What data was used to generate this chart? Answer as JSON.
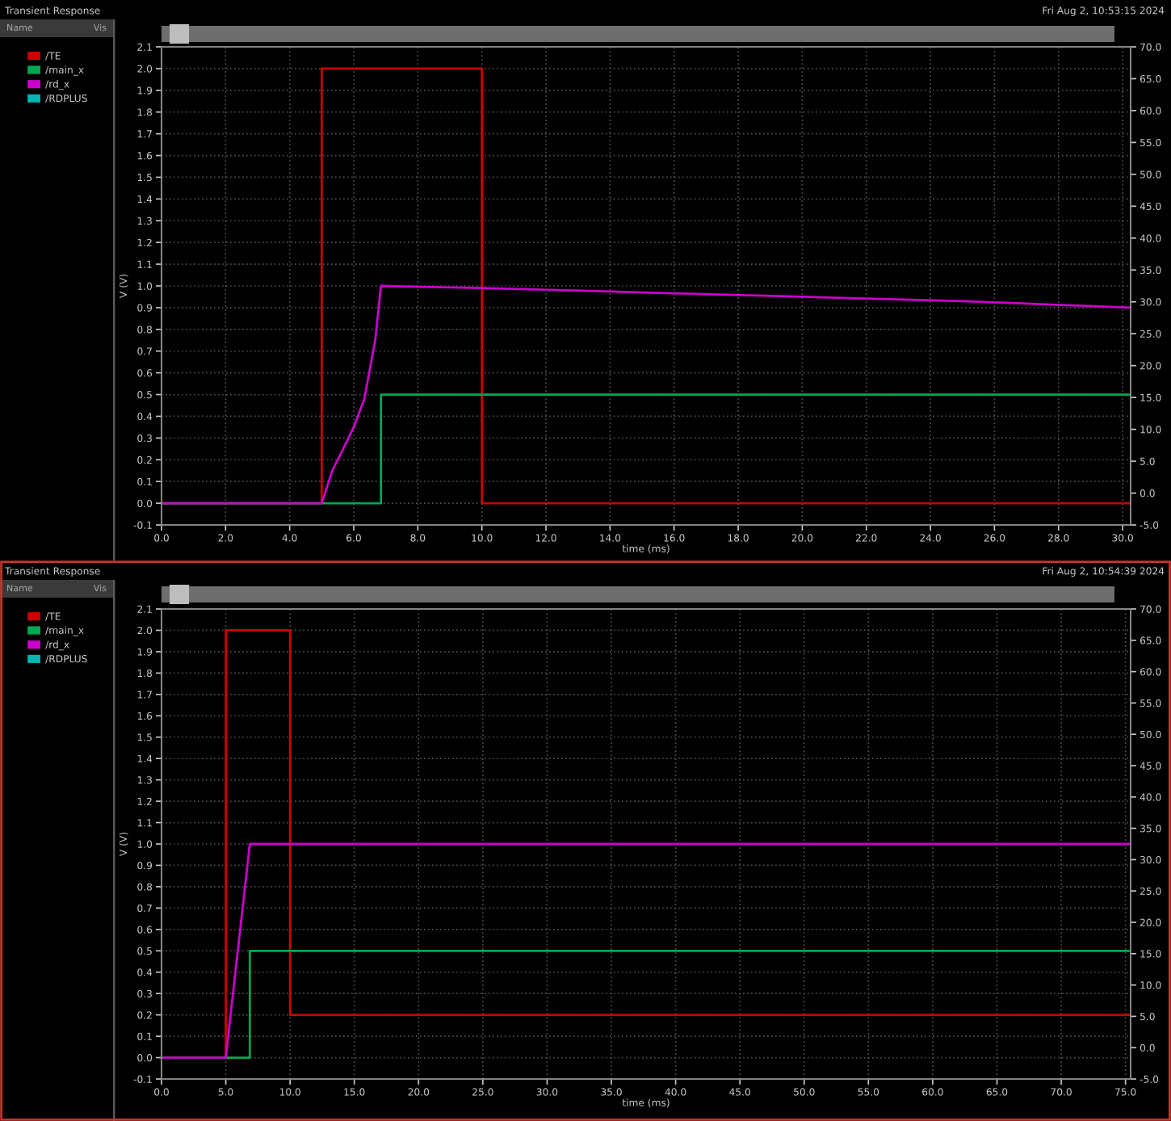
{
  "chart_data": [
    {
      "type": "line",
      "title": "Transient Response",
      "subtitle": "Fri Aug 2, 10:53:15 2024",
      "xlabel": "time (ms)",
      "ylabel": "V (V)",
      "annotations": [
        "Name",
        "Vis"
      ],
      "xlim": [
        0,
        30.25
      ],
      "xticks": [
        {
          "value": 0,
          "label": "0.0"
        },
        {
          "value": 2,
          "label": "2.0"
        },
        {
          "value": 4,
          "label": "4.0"
        },
        {
          "value": 6,
          "label": "6.0"
        },
        {
          "value": 8,
          "label": "8.0"
        },
        {
          "value": 10,
          "label": "10.0"
        },
        {
          "value": 12,
          "label": "12.0"
        },
        {
          "value": 14,
          "label": "14.0"
        },
        {
          "value": 16,
          "label": "16.0"
        },
        {
          "value": 18,
          "label": "18.0"
        },
        {
          "value": 20,
          "label": "20.0"
        },
        {
          "value": 22,
          "label": "22.0"
        },
        {
          "value": 24,
          "label": "24.0"
        },
        {
          "value": 26,
          "label": "26.0"
        },
        {
          "value": 28,
          "label": "28.0"
        },
        {
          "value": 30,
          "label": "30.0"
        }
      ],
      "ylim": [
        -0.1,
        2.1
      ],
      "yticks": [
        -0.1,
        {
          "value": 0,
          "label": "0.0"
        },
        0.1,
        0.2,
        0.3,
        0.4,
        0.5,
        0.6,
        0.7,
        0.8,
        0.9,
        {
          "value": 1,
          "label": "1.0"
        },
        1.1,
        1.2,
        1.3,
        1.4,
        1.5,
        1.6,
        1.7,
        1.8,
        1.9,
        {
          "value": 2,
          "label": "2.0"
        },
        2.1
      ],
      "y2lim": [
        -5,
        70
      ],
      "y2ticks": [
        {
          "value": -5,
          "label": "-5.0"
        },
        {
          "value": 0,
          "label": "0.0"
        },
        {
          "value": 5,
          "label": "5.0"
        },
        {
          "value": 10,
          "label": "10.0"
        },
        {
          "value": 15,
          "label": "15.0"
        },
        {
          "value": 20,
          "label": "20.0"
        },
        {
          "value": 25,
          "label": "25.0"
        },
        {
          "value": 30,
          "label": "30.0"
        },
        {
          "value": 35,
          "label": "35.0"
        },
        {
          "value": 40,
          "label": "40.0"
        },
        {
          "value": 45,
          "label": "45.0"
        },
        {
          "value": 50,
          "label": "50.0"
        },
        {
          "value": 55,
          "label": "55.0"
        },
        {
          "value": 60,
          "label": "60.0"
        },
        {
          "value": 65,
          "label": "65.0"
        },
        {
          "value": 70,
          "label": "70.0"
        }
      ],
      "grid": true,
      "legend": "left",
      "series": [
        {
          "name": "/TE",
          "color": "#cc0000",
          "x": [
            0,
            5,
            5,
            10,
            10,
            30.25
          ],
          "values": [
            0,
            0,
            2.0,
            2.0,
            0,
            0
          ]
        },
        {
          "name": "/main_x",
          "color": "#00a651",
          "x": [
            0,
            6.85,
            6.85,
            30.25
          ],
          "values": [
            0,
            0,
            0.5,
            0.5
          ]
        },
        {
          "name": "/rd_x",
          "color": "#cc00cc",
          "x": [
            0,
            5,
            5.33,
            5.67,
            6.0,
            6.33,
            6.67,
            6.85,
            10,
            15,
            20,
            25,
            30.25
          ],
          "values": [
            0,
            0,
            0.15,
            0.25,
            0.35,
            0.48,
            0.75,
            1.0,
            0.99,
            0.97,
            0.95,
            0.93,
            0.9
          ]
        },
        {
          "name": "/RDPLUS",
          "color": "#00b4b4"
        }
      ]
    },
    {
      "type": "line",
      "title": "Transient Response",
      "subtitle": "Fri Aug 2, 10:54:39 2024",
      "xlabel": "time (ms)",
      "ylabel": "V (V)",
      "annotations": [
        "Name",
        "Vis"
      ],
      "xlim": [
        0,
        75.4
      ],
      "xticks": [
        {
          "value": 0,
          "label": "0.0"
        },
        {
          "value": 5,
          "label": "5.0"
        },
        {
          "value": 10,
          "label": "10.0"
        },
        {
          "value": 15,
          "label": "15.0"
        },
        {
          "value": 20,
          "label": "20.0"
        },
        {
          "value": 25,
          "label": "25.0"
        },
        {
          "value": 30,
          "label": "30.0"
        },
        {
          "value": 35,
          "label": "35.0"
        },
        {
          "value": 40,
          "label": "40.0"
        },
        {
          "value": 45,
          "label": "45.0"
        },
        {
          "value": 50,
          "label": "50.0"
        },
        {
          "value": 55,
          "label": "55.0"
        },
        {
          "value": 60,
          "label": "60.0"
        },
        {
          "value": 65,
          "label": "65.0"
        },
        {
          "value": 70,
          "label": "70.0"
        },
        {
          "value": 75,
          "label": "75.0"
        }
      ],
      "ylim": [
        -0.1,
        2.1
      ],
      "yticks": [
        -0.1,
        {
          "value": 0,
          "label": "0.0"
        },
        0.1,
        0.2,
        0.3,
        0.4,
        0.5,
        0.6,
        0.7,
        0.8,
        0.9,
        {
          "value": 1,
          "label": "1.0"
        },
        1.1,
        1.2,
        1.3,
        1.4,
        1.5,
        1.6,
        1.7,
        1.8,
        1.9,
        {
          "value": 2,
          "label": "2.0"
        },
        2.1
      ],
      "y2lim": [
        -5,
        70
      ],
      "y2ticks": [
        {
          "value": -5,
          "label": "-5.0"
        },
        {
          "value": 0,
          "label": "0.0"
        },
        {
          "value": 5,
          "label": "5.0"
        },
        {
          "value": 10,
          "label": "10.0"
        },
        {
          "value": 15,
          "label": "15.0"
        },
        {
          "value": 20,
          "label": "20.0"
        },
        {
          "value": 25,
          "label": "25.0"
        },
        {
          "value": 30,
          "label": "30.0"
        },
        {
          "value": 35,
          "label": "35.0"
        },
        {
          "value": 40,
          "label": "40.0"
        },
        {
          "value": 45,
          "label": "45.0"
        },
        {
          "value": 50,
          "label": "50.0"
        },
        {
          "value": 55,
          "label": "55.0"
        },
        {
          "value": 60,
          "label": "60.0"
        },
        {
          "value": 65,
          "label": "65.0"
        },
        {
          "value": 70,
          "label": "70.0"
        }
      ],
      "grid": true,
      "legend": "left",
      "series": [
        {
          "name": "/TE",
          "color": "#cc0000",
          "x": [
            0,
            5,
            5,
            10,
            10,
            75.4
          ],
          "values": [
            0,
            0,
            2.0,
            2.0,
            0.2,
            0.2
          ]
        },
        {
          "name": "/main_x",
          "color": "#00a651",
          "x": [
            0,
            6.87,
            6.87,
            75.4
          ],
          "values": [
            0,
            0,
            0.5,
            0.5
          ]
        },
        {
          "name": "/rd_x",
          "color": "#cc00cc",
          "x": [
            0,
            5,
            6.87,
            75.4
          ],
          "values": [
            0,
            0,
            1.0,
            1.0
          ]
        },
        {
          "name": "/RDPLUS",
          "color": "#00b4b4"
        }
      ]
    }
  ]
}
